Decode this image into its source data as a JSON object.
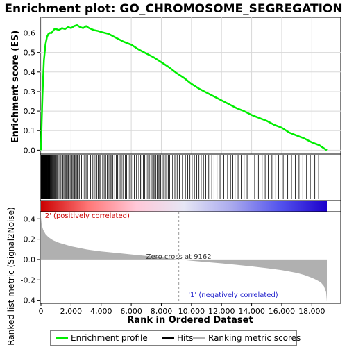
{
  "chart_data": {
    "type": "line",
    "title": "Enrichment plot: GO_CHROMOSOME_SEGREGATION",
    "panels": {
      "enrichment": {
        "ylabel": "Enrichment score (ES)",
        "ylim": [
          -0.02,
          0.68
        ],
        "yticks": [
          "0.0",
          "0.1",
          "0.2",
          "0.3",
          "0.4",
          "0.5",
          "0.6"
        ],
        "ytick_values": [
          0.0,
          0.1,
          0.2,
          0.3,
          0.4,
          0.5,
          0.6
        ],
        "grid": true,
        "series": {
          "name": "Enrichment profile",
          "color": "#00ee00",
          "x": [
            0,
            50,
            100,
            150,
            200,
            300,
            400,
            500,
            600,
            700,
            800,
            900,
            1000,
            1200,
            1400,
            1600,
            1800,
            2000,
            2200,
            2400,
            2600,
            2800,
            3000,
            3200,
            3500,
            3800,
            4000,
            4500,
            5000,
            5500,
            6000,
            6500,
            7000,
            7500,
            8000,
            8500,
            9000,
            9500,
            10000,
            10500,
            11000,
            11500,
            12000,
            12500,
            13000,
            13500,
            14000,
            14500,
            15000,
            15500,
            16000,
            16500,
            17000,
            17500,
            18000,
            18500,
            19000
          ],
          "y": [
            0.0,
            0.15,
            0.28,
            0.38,
            0.46,
            0.54,
            0.58,
            0.595,
            0.6,
            0.6,
            0.61,
            0.62,
            0.62,
            0.615,
            0.625,
            0.62,
            0.63,
            0.625,
            0.635,
            0.64,
            0.63,
            0.625,
            0.635,
            0.625,
            0.615,
            0.61,
            0.605,
            0.595,
            0.575,
            0.555,
            0.54,
            0.515,
            0.495,
            0.475,
            0.45,
            0.425,
            0.395,
            0.37,
            0.34,
            0.315,
            0.295,
            0.275,
            0.255,
            0.235,
            0.215,
            0.2,
            0.18,
            0.165,
            0.15,
            0.13,
            0.115,
            0.09,
            0.075,
            0.06,
            0.04,
            0.025,
            0.0
          ]
        }
      },
      "hits": {
        "series_name": "Hits",
        "color": "#000000",
        "positions": [
          12,
          30,
          48,
          65,
          80,
          95,
          110,
          125,
          140,
          155,
          170,
          185,
          200,
          215,
          230,
          245,
          260,
          275,
          290,
          305,
          320,
          340,
          360,
          380,
          400,
          420,
          440,
          460,
          480,
          500,
          530,
          560,
          590,
          620,
          650,
          690,
          730,
          770,
          810,
          850,
          900,
          950,
          1000,
          1050,
          1100,
          1200,
          1270,
          1330,
          1400,
          1450,
          1520,
          1580,
          1650,
          1700,
          1760,
          1820,
          1870,
          1940,
          2000,
          2060,
          2120,
          2180,
          2240,
          2300,
          2360,
          2420,
          2480,
          2550,
          2700,
          2800,
          2900,
          3000,
          3100,
          3300,
          3450,
          3550,
          3650,
          3720,
          3800,
          3880,
          3960,
          4100,
          4200,
          4300,
          4400,
          4520,
          4620,
          4700,
          4780,
          4900,
          5000,
          5100,
          5180,
          5260,
          5350,
          5450,
          5600,
          5700,
          5800,
          5900,
          6000,
          6100,
          6200,
          6350,
          6500,
          6620,
          6700,
          6800,
          6900,
          7000,
          7100,
          7200,
          7300,
          7380,
          7480,
          7560,
          7640,
          7720,
          7800,
          7880,
          7960,
          8040,
          8120,
          8200,
          8300,
          8380,
          8460,
          8550,
          8650,
          8750,
          8900,
          9050,
          9200,
          9400,
          9600,
          9750,
          9900,
          10050,
          10200,
          10350,
          10500,
          10650,
          10800,
          10950,
          11150,
          11350,
          11500,
          11700,
          11900,
          12150,
          12400,
          12600,
          12750,
          12900,
          13100,
          13300,
          13500,
          13700,
          13950,
          14200,
          14450,
          14700,
          14900,
          15100,
          15350,
          15600,
          15800,
          16100,
          16400,
          16650,
          16900,
          17150,
          17400,
          17650,
          17900,
          18200,
          18450
        ]
      },
      "ranking": {
        "ylabel": "Ranked list metric (Signal2Noise)",
        "xlabel": "Rank in Ordered Dataset",
        "ylim": [
          -0.43,
          0.47
        ],
        "yticks": [
          "0.4",
          "0.2",
          "0.0",
          "-0.2",
          "-0.4"
        ],
        "ytick_values": [
          0.4,
          0.2,
          0.0,
          -0.2,
          -0.4
        ],
        "xlim": [
          0,
          19500
        ],
        "xticks": [
          "0",
          "2,000",
          "4,000",
          "6,000",
          "8,000",
          "10,000",
          "12,000",
          "14,000",
          "16,000",
          "18,000"
        ],
        "xtick_values": [
          0,
          2000,
          4000,
          6000,
          8000,
          10000,
          12000,
          14000,
          16000,
          18000
        ],
        "series_name": "Ranking metric scores",
        "color": "#b0b0b0",
        "x": [
          0,
          50,
          150,
          300,
          500,
          800,
          1200,
          2000,
          3000,
          4000,
          5000,
          6000,
          7000,
          8000,
          9162,
          10000,
          11000,
          12000,
          13000,
          14000,
          15000,
          16000,
          16500,
          17000,
          17500,
          18000,
          18300,
          18600,
          18800,
          18950,
          19000
        ],
        "y": [
          0.42,
          0.34,
          0.29,
          0.25,
          0.22,
          0.19,
          0.165,
          0.13,
          0.1,
          0.08,
          0.065,
          0.05,
          0.035,
          0.02,
          0.0,
          -0.012,
          -0.025,
          -0.038,
          -0.052,
          -0.068,
          -0.085,
          -0.105,
          -0.118,
          -0.132,
          -0.152,
          -0.18,
          -0.2,
          -0.225,
          -0.26,
          -0.32,
          -0.41
        ],
        "zero_cross_rank": 9162,
        "annotations": {
          "zero_cross": "Zero cross at 9162",
          "positive": "'2' (positively correlated)",
          "negative": "'1' (negatively correlated)"
        },
        "annotation_colors": {
          "positive": "#cc0000",
          "negative": "#2222cc",
          "zero": "#333333"
        }
      }
    },
    "gradient_colors": [
      "#cc0000",
      "#ff7777",
      "#ffc8d8",
      "#e6e6f5",
      "#aaaaee",
      "#5555ee",
      "#1c00cc"
    ],
    "legend": {
      "placement": "bottom",
      "items": [
        "Enrichment profile",
        "Hits",
        "Ranking metric scores"
      ]
    }
  }
}
